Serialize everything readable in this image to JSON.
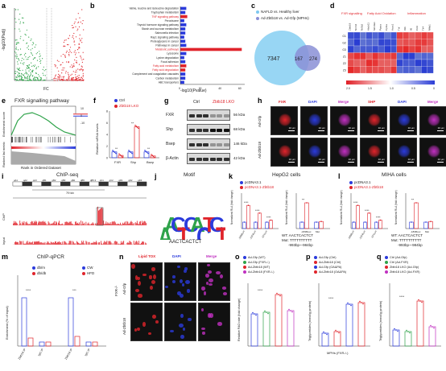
{
  "panels": {
    "a": {
      "label": "a",
      "xlabel": "FC",
      "ylabel": "-log10(Padj)"
    },
    "b": {
      "label": "b",
      "xlabel": "-log10(Pvalue)",
      "ticks": [
        "0",
        "20",
        "40",
        "60"
      ],
      "terms": [
        "Valine, leucine and isoleucine degradation",
        "Tryptophan metabolism",
        "TNF signaling pathway",
        "Peroxisome",
        "Thyroid hormone signaling pathway",
        "Starch and sucrose metabolism",
        "Salmonella infection",
        "Rap1 signaling pathway",
        "Proteoglycans in cancer",
        "Pathways in cancer",
        "Metabolic pathways",
        "Lysosome",
        "Lysine degradation",
        "Focal adhesion",
        "Fatty acid metabolism",
        "Fatty acid degradation",
        "Complement and coagulation cascades",
        "Carbon metabolism",
        "ABC transporters"
      ],
      "values": [
        6,
        5,
        7,
        4,
        6,
        5,
        5,
        4,
        5,
        6,
        62,
        6,
        4,
        5,
        6,
        5,
        5,
        5,
        4
      ],
      "red_terms": [
        2,
        10,
        14,
        15
      ]
    },
    "c": {
      "label": "c",
      "legend": [
        "NAFLD vs. Healthy liver",
        "Ad-Zbtb18 vs. Ad-Gfp (MPHs)"
      ],
      "left": "7347",
      "mid": "167",
      "right": "274"
    },
    "d": {
      "label": "d",
      "groups": [
        "FXR signalling",
        "Fatty Acid Oxidation",
        "Inflammation"
      ],
      "rows": [
        "G1",
        "G2",
        "G3",
        "Z1",
        "Z2",
        "Z3"
      ],
      "scale": [
        "2.0",
        "1.5",
        "1.0",
        "0.5",
        "0"
      ]
    },
    "e": {
      "label": "e",
      "title": "FXR signalling pathway",
      "ylabel1": "Enrichment score",
      "ylabel2": "Ranked list metric",
      "xlabel": "Rank in Ordered Dataset",
      "scale": [
        "10",
        "0",
        "-10"
      ]
    },
    "f": {
      "label": "f",
      "legend": [
        "Ctrl",
        "Zbtb18 LKO"
      ],
      "ylabel": "Relative mRNA levels",
      "cats": [
        "FXR",
        "Shp",
        "Bsep"
      ],
      "ticks": [
        "0",
        "2",
        "4",
        "6",
        "8"
      ],
      "ctrl": [
        1,
        1,
        1
      ],
      "lko": [
        0.4,
        5.3,
        0.3
      ]
    },
    "g": {
      "label": "g",
      "cols": [
        "Ctrl",
        "Zbtb18 LKO"
      ],
      "rows": [
        "FXR",
        "Shp",
        "Bsep",
        "β-Actin"
      ],
      "sizes": [
        "56 kDa",
        "68 kDa",
        "146 kDa",
        "42 kDa"
      ]
    },
    "h": {
      "label": "h",
      "cols": [
        "FXR",
        "DAPI",
        "Merge",
        "SHP",
        "DAPI",
        "Merge"
      ],
      "rows": [
        "Ad-Gfp",
        "Ad-Zbtb18"
      ],
      "scale": "10 μm"
    },
    "i": {
      "label": "i",
      "title": "ChIP-seq",
      "bands": [
        "qA1",
        "qA2",
        "qA3",
        "qB1",
        "qB2",
        "qB3",
        "qB4",
        "qB5",
        "qB5.3",
        "qC1",
        "qC2",
        "qD1",
        "qD2",
        "qD3"
      ],
      "kb": "79 kb",
      "ylabels": [
        "ChIP",
        "Input"
      ]
    },
    "j": {
      "label": "j",
      "title": "Motif",
      "seq": "AACTCACTCT"
    },
    "k": {
      "label": "k",
      "title": "HepG2 cells",
      "legend": [
        "pcDNA3.1",
        "pcDNA3.1-Zbtb18"
      ],
      "ylabel1": "Normalized RLA (fold change)",
      "ylabel2": "Normalized RLA (fold change)",
      "cats1": [
        "-1838Luc",
        "-1074Luc",
        "-571Luc"
      ],
      "cats2": [
        "-1838Luc",
        "Mut"
      ],
      "wt": "WT: AACTCACTCT",
      "mut": "Mut: TTTTTTTTTT",
      "pos": "-993bp~-984bp"
    },
    "l": {
      "label": "l",
      "title": "MIHA cells",
      "legend": [
        "pcDNA3.1",
        "pcDNA3.1-Zbtb18"
      ],
      "ylabel1": "Normalized RLA (fold change)",
      "ylabel2": "Normalized RLA (fold change)",
      "cats1": [
        "-1838Luc",
        "-1074Luc",
        "-571Luc"
      ],
      "cats2": [
        "-1838Luc",
        "Mut"
      ],
      "wt": "WT: AACTCACTCT",
      "mut": "Mut: TTTTTTTTTT",
      "pos": "-993bp~-984bp"
    },
    "m": {
      "label": "m",
      "title": "ChIP-qPCR",
      "legend1": [
        "db/m",
        "db/db"
      ],
      "legend2": [
        "CW",
        "HFD"
      ],
      "ylabel": "Enrichment (% of input)",
      "cats": [
        "Zbtb18 IP",
        "IgG IP",
        "Zbtb18 IP",
        "IgG IP"
      ]
    },
    "n": {
      "label": "n",
      "cols": [
        "Lipid TOX",
        "DAPI",
        "Merge"
      ],
      "rows": [
        "Ad-Gfp",
        "Ad-Zbtb18"
      ],
      "side": "FXR-/-"
    },
    "o": {
      "label": "o",
      "legend": [
        "Ad-Gfp (WT)",
        "Ad-Gfp (FXR-/-)",
        "Ad-Zbtb18 (WT)",
        "Ad-Zbtb18 (FXR-/-)"
      ],
      "ylabel": "Relative FAO rate (fold change)"
    },
    "p": {
      "label": "p",
      "legend": [
        "Ad-Gfp (Ctrl)",
        "Ad-Zbtb18 (Ctrl)",
        "Ad-Gfp (OA&PA)",
        "Ad-Zbtb18 (OA&PA)"
      ],
      "ylabel": "Triglycerides (mmol/g protein)",
      "xlabel": "MPHs (FXR-/-)"
    },
    "q": {
      "label": "q",
      "legend": [
        "Ctrl (Ad-Gfp)",
        "Ctrl (Ad-FXR)",
        "Zbtb18 LKO (Ad-Gfp)",
        "Zbtb18 LKO (Ad-FXR)"
      ],
      "ylabel": "Triglycerides (mmol/g protein)"
    }
  },
  "colors": {
    "red": "#e0242b",
    "blue": "#2b3bdc",
    "green": "#2fa34a",
    "light_blue": "#7ec8f0",
    "purple": "#8a8fd6"
  }
}
